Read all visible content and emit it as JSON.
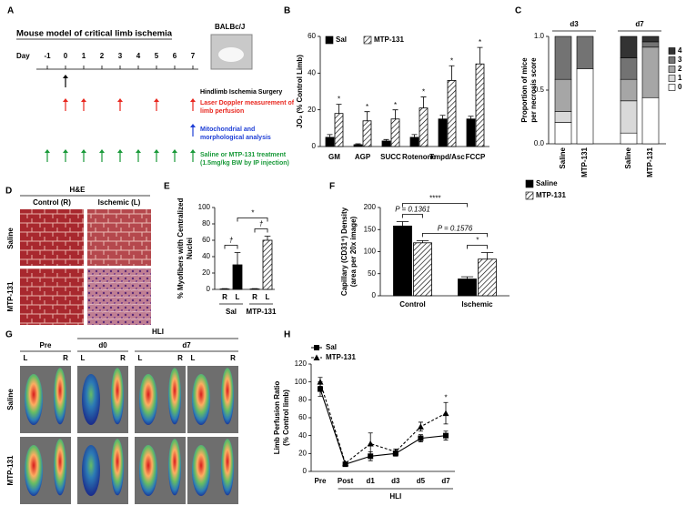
{
  "panel_labels": [
    "A",
    "B",
    "C",
    "D",
    "E",
    "F",
    "G",
    "H"
  ],
  "panel_a": {
    "title": "Mouse model of critical limb ischemia",
    "strain": "BALBc/J",
    "day_label": "Day",
    "days": [
      "-1",
      "0",
      "1",
      "2",
      "3",
      "4",
      "5",
      "6",
      "7"
    ],
    "events": [
      {
        "lines": [
          "Hindlimb Ischemia Surgery"
        ],
        "color": "#000000",
        "at": [
          1
        ]
      },
      {
        "lines": [
          "Laser Doppler measurement of",
          "limb perfusion"
        ],
        "color": "#e8271f",
        "at": [
          1,
          2,
          4,
          6,
          8
        ]
      },
      {
        "lines": [
          "Mitochondrial and",
          "morphological analysis"
        ],
        "color": "#1f3fd6",
        "at": [
          8
        ]
      },
      {
        "lines": [
          "Saline or MTP-131 treatment",
          "(1.5mg/kg BW by IP injection)"
        ],
        "color": "#1a9a3a",
        "at": [
          0,
          1,
          2,
          3,
          4,
          5,
          6,
          7,
          8
        ]
      }
    ]
  },
  "panel_d": {
    "title": "H&E",
    "columns": [
      "Control (R)",
      "Ischemic (L)"
    ],
    "rows": [
      "Saline",
      "MTP-131"
    ]
  },
  "panel_g": {
    "header": "HLI",
    "columns": [
      "Pre",
      "d0",
      "d7"
    ],
    "limbs": [
      "L",
      "R"
    ],
    "rows": [
      "Saline",
      "MTP-131"
    ]
  },
  "chart_data": [
    {
      "type": "bar",
      "y_label": "JO₂ (% Control Limb)",
      "categories": [
        "GM",
        "AGP",
        "SUCC",
        "Rotenone",
        "Tmpd/Asc",
        "FCCP"
      ],
      "series": [
        {
          "name": "Sal",
          "color": "#000000",
          "values": [
            5,
            1,
            3,
            5,
            15,
            15
          ],
          "errors": [
            1.5,
            0.5,
            0.8,
            1.5,
            2,
            1.5
          ]
        },
        {
          "name": "MTP-131",
          "color": "#ffffff",
          "pattern": "hatch",
          "values": [
            18,
            14,
            15,
            21,
            36,
            45
          ],
          "errors": [
            5,
            5,
            5,
            6,
            8,
            9
          ],
          "significance": [
            "*",
            "*",
            "*",
            "*",
            "*",
            "*"
          ]
        }
      ],
      "ylim": [
        0,
        60
      ],
      "yticks": [
        0,
        20,
        40,
        60
      ],
      "legend": "top-left"
    },
    {
      "type": "stacked_bar",
      "y_label": [
        "Proportion of mice",
        "per necrosis score"
      ],
      "categories": [
        "Saline",
        "MTP-131",
        "Saline",
        "MTP-131"
      ],
      "groups": [
        {
          "label": "d3",
          "categories": [
            0,
            1
          ]
        },
        {
          "label": "d7",
          "categories": [
            2,
            3
          ]
        }
      ],
      "series": [
        {
          "name": "0",
          "color": "#ffffff",
          "values": [
            0.2,
            0.7,
            0.1,
            0.43
          ]
        },
        {
          "name": "1",
          "color": "#d9d9d9",
          "values": [
            0.1,
            0,
            0.3,
            0
          ]
        },
        {
          "name": "2",
          "color": "#a6a6a6",
          "values": [
            0.3,
            0,
            0.2,
            0.47
          ]
        },
        {
          "name": "3",
          "color": "#737373",
          "values": [
            0.4,
            0.3,
            0.2,
            0.05
          ]
        },
        {
          "name": "4",
          "color": "#333333",
          "values": [
            0,
            0,
            0.2,
            0.05
          ]
        }
      ],
      "ylim": [
        0,
        1
      ],
      "yticks": [
        {
          "value": 0,
          "label": "0.0"
        },
        0.5,
        {
          "value": 1,
          "label": "1.0"
        }
      ],
      "legend": "right"
    },
    {
      "type": "bar",
      "y_label": [
        "% Myofibers with Centralized",
        "Nuclei"
      ],
      "categories": [
        "R",
        "L",
        "R",
        "L"
      ],
      "groups": [
        {
          "label": "Sal",
          "categories": [
            0,
            1
          ],
          "color": "#000000"
        },
        {
          "label": "MTP-131",
          "categories": [
            2,
            3
          ],
          "color": "#ffffff",
          "pattern": "hatch"
        }
      ],
      "values": [
        0.5,
        30,
        0.5,
        60
      ],
      "errors": [
        0.5,
        15,
        0.5,
        5
      ],
      "annotations": [
        {
          "text": "†",
          "between": [
            0,
            1
          ]
        },
        {
          "text": "†",
          "between": [
            2,
            3
          ]
        },
        {
          "text": "*",
          "between": [
            1,
            3
          ]
        }
      ],
      "ylim": [
        0,
        100
      ],
      "yticks": [
        0,
        20,
        40,
        60,
        80,
        100
      ]
    },
    {
      "type": "bar",
      "y_label": [
        "Capillary (CD31⁺) Density",
        "(area per 20x image)"
      ],
      "categories": [
        "Control",
        "Ischemic"
      ],
      "series": [
        {
          "name": "Saline",
          "color": "#000000",
          "values": [
            158,
            38
          ],
          "errors": [
            10,
            5
          ]
        },
        {
          "name": "MTP-131",
          "color": "#ffffff",
          "pattern": "hatch",
          "values": [
            120,
            83
          ],
          "errors": [
            5,
            15
          ]
        }
      ],
      "annotations": [
        {
          "text": "P = 0.1361",
          "between": [
            0,
            1
          ]
        },
        {
          "text": "*",
          "between": [
            2,
            3
          ]
        },
        {
          "text": "P = 0.1576",
          "between": [
            1,
            3
          ]
        },
        {
          "text": "****",
          "between": [
            0,
            2
          ]
        }
      ],
      "ylim": [
        0,
        200
      ],
      "yticks": [
        0,
        50,
        100,
        150,
        200
      ],
      "legend": "right"
    },
    {
      "type": "line",
      "y_label": [
        "Limb Perfusion Ratio",
        "(% Control limb)"
      ],
      "categories": [
        "Pre",
        "Post",
        "d1",
        "d3",
        "d5",
        "d7"
      ],
      "category_group": {
        "label": "HLI",
        "from": 1,
        "to": 5
      },
      "series": [
        {
          "name": "Sal",
          "color": "#000000",
          "marker": "square",
          "line_style": "solid",
          "values": [
            92,
            8,
            17,
            20,
            37,
            40
          ],
          "errors": [
            8,
            1,
            5,
            3,
            4,
            5
          ]
        },
        {
          "name": "MTP-131",
          "color": "#000000",
          "marker": "triangle",
          "line_style": "dashed",
          "values": [
            100,
            9,
            31,
            22,
            50,
            65
          ],
          "errors": [
            5,
            1,
            12,
            3,
            5,
            12
          ]
        }
      ],
      "annotations": [
        {
          "text": "*",
          "category": 5
        }
      ],
      "ylim": [
        0,
        120
      ],
      "yticks": [
        0,
        20,
        40,
        60,
        80,
        100,
        120
      ],
      "legend": "top-left"
    }
  ]
}
